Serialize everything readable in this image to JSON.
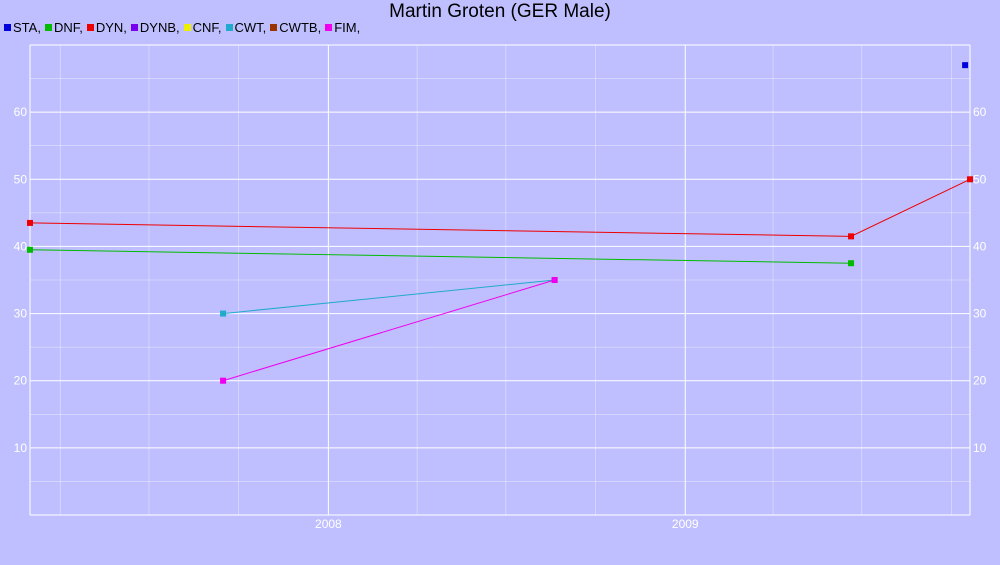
{
  "chart_data": {
    "type": "line",
    "title": "Martin Groten (GER Male)",
    "xlabel": "",
    "ylabel": "",
    "x_range": [
      "2007-03-01",
      "2009-10-20"
    ],
    "ylim": [
      0,
      70
    ],
    "y_ticks": [
      10,
      20,
      30,
      40,
      50,
      60
    ],
    "x_ticks": [
      {
        "date": "2008-01-01",
        "label": "2008"
      },
      {
        "date": "2009-01-01",
        "label": "2009"
      }
    ],
    "grid": true,
    "legend_position": "top-left",
    "series": [
      {
        "name": "STA",
        "color": "#0000dd",
        "points": [
          {
            "x": "2009-10-15",
            "y": 67
          }
        ]
      },
      {
        "name": "DNF",
        "color": "#00bb00",
        "points": [
          {
            "x": "2007-03-01",
            "y": 39.5
          },
          {
            "x": "2009-06-20",
            "y": 37.5
          }
        ]
      },
      {
        "name": "DYN",
        "color": "#ee0000",
        "points": [
          {
            "x": "2007-03-01",
            "y": 43.5
          },
          {
            "x": "2009-06-20",
            "y": 41.5
          },
          {
            "x": "2009-10-20",
            "y": 50
          }
        ]
      },
      {
        "name": "DYNB",
        "color": "#7700ee",
        "points": []
      },
      {
        "name": "CNF",
        "color": "#eeee00",
        "points": []
      },
      {
        "name": "CWT",
        "color": "#22aacc",
        "points": [
          {
            "x": "2007-09-15",
            "y": 30
          },
          {
            "x": "2008-08-20",
            "y": 35
          }
        ]
      },
      {
        "name": "CWTB",
        "color": "#993300",
        "points": []
      },
      {
        "name": "FIM",
        "color": "#ee00ee",
        "points": [
          {
            "x": "2007-09-15",
            "y": 20
          },
          {
            "x": "2008-08-20",
            "y": 35
          }
        ]
      }
    ]
  }
}
